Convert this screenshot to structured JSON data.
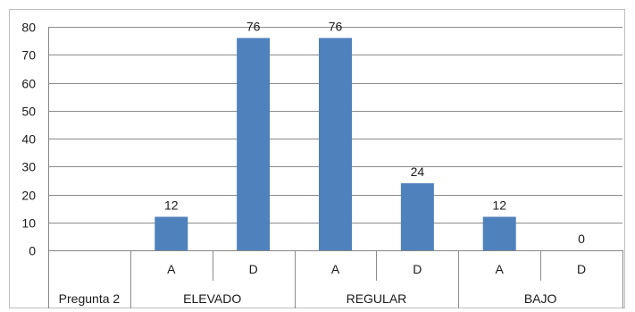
{
  "chart_data": {
    "type": "bar",
    "title": "",
    "xlabel": "",
    "ylabel": "",
    "ylim": [
      0,
      80
    ],
    "y_ticks": [
      0,
      10,
      20,
      30,
      40,
      50,
      60,
      70,
      80
    ],
    "grid": true,
    "legend": "none",
    "bar_color": "#4F81BD",
    "categories": [
      "",
      "A",
      "D",
      "A",
      "D",
      "A",
      "D"
    ],
    "values": [
      null,
      12,
      76,
      76,
      24,
      12,
      0
    ],
    "data_labels": [
      "",
      "12",
      "76",
      "76",
      "24",
      "12",
      "0"
    ],
    "groups": [
      {
        "label": "Pregunta 2",
        "span": 1
      },
      {
        "label": "ELEVADO",
        "span": 2
      },
      {
        "label": "REGULAR",
        "span": 2
      },
      {
        "label": "BAJO",
        "span": 2
      }
    ]
  }
}
